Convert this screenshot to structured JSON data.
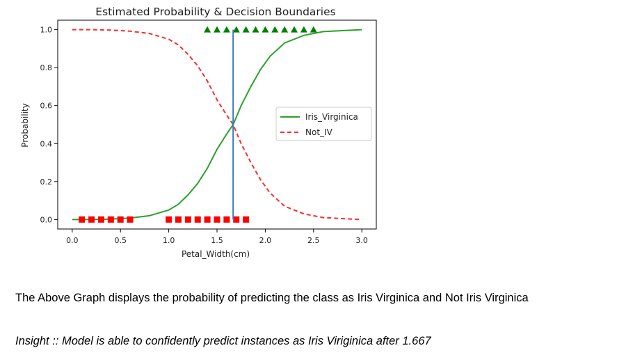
{
  "chart_data": {
    "type": "line",
    "title": "Estimated Probability & Decision Boundaries",
    "xlabel": "Petal_Width(cm)",
    "ylabel": "Probability",
    "xlim": [
      -0.15,
      3.15
    ],
    "ylim": [
      -0.05,
      1.05
    ],
    "xticks": [
      0.0,
      0.5,
      1.0,
      1.5,
      2.0,
      2.5,
      3.0
    ],
    "xtick_labels": [
      "0.0",
      "0.5",
      "1.0",
      "1.5",
      "2.0",
      "2.5",
      "3.0"
    ],
    "yticks": [
      0.0,
      0.2,
      0.4,
      0.6,
      0.8,
      1.0
    ],
    "ytick_labels": [
      "0.0",
      "0.2",
      "0.4",
      "0.6",
      "0.8",
      "1.0"
    ],
    "grid": false,
    "legend_position": "center-right",
    "decision_boundary": 1.667,
    "series": [
      {
        "name": "Iris_Virginica",
        "style": "solid",
        "color": "#2ca02c",
        "x": [
          0.0,
          0.2,
          0.4,
          0.6,
          0.8,
          1.0,
          1.1,
          1.2,
          1.3,
          1.4,
          1.5,
          1.6,
          1.667,
          1.75,
          1.85,
          1.95,
          2.05,
          2.2,
          2.4,
          2.6,
          2.8,
          3.0
        ],
        "y": [
          0.0,
          0.0,
          0.002,
          0.008,
          0.02,
          0.05,
          0.08,
          0.13,
          0.19,
          0.27,
          0.37,
          0.45,
          0.5,
          0.6,
          0.7,
          0.79,
          0.86,
          0.93,
          0.97,
          0.99,
          0.995,
          1.0
        ]
      },
      {
        "name": "Not_IV",
        "style": "dashed",
        "color": "#ff2a2a",
        "x": [
          0.0,
          0.2,
          0.4,
          0.6,
          0.8,
          1.0,
          1.1,
          1.2,
          1.3,
          1.4,
          1.5,
          1.6,
          1.667,
          1.75,
          1.85,
          1.95,
          2.05,
          2.2,
          2.4,
          2.6,
          2.8,
          3.0
        ],
        "y": [
          1.0,
          1.0,
          0.998,
          0.992,
          0.98,
          0.95,
          0.92,
          0.87,
          0.81,
          0.73,
          0.63,
          0.55,
          0.5,
          0.4,
          0.3,
          0.21,
          0.14,
          0.07,
          0.03,
          0.01,
          0.005,
          0.0
        ]
      }
    ],
    "markers": [
      {
        "shape": "triangle",
        "color": "#008000",
        "y": 1.0,
        "x": [
          1.4,
          1.5,
          1.6,
          1.7,
          1.8,
          1.9,
          2.0,
          2.1,
          2.2,
          2.3,
          2.4,
          2.5
        ]
      },
      {
        "shape": "square",
        "color": "#ff0000",
        "y": 0.0,
        "x": [
          0.1,
          0.2,
          0.3,
          0.4,
          0.5,
          0.6,
          1.0,
          1.1,
          1.2,
          1.3,
          1.4,
          1.5,
          1.6,
          1.7,
          1.8
        ]
      }
    ]
  },
  "text": {
    "caption": "The Above Graph displays the probability of predicting the class as Iris Virginica and Not Iris Virginica",
    "insight": "Insight :: Model is able to confidently predict instances as Iris Viriginica after 1.667"
  }
}
